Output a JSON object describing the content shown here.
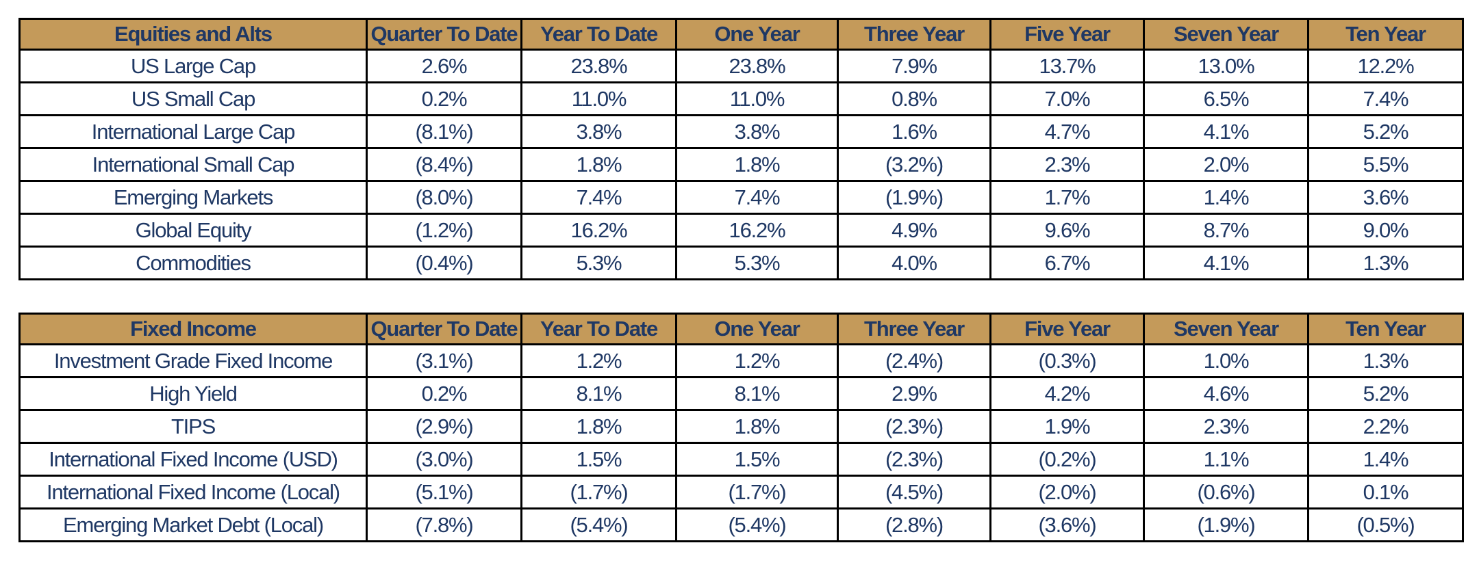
{
  "chart_data": [
    {
      "type": "table",
      "columns": [
        "Equities and Alts",
        "Quarter To Date",
        "Year To Date",
        "One Year",
        "Three Year",
        "Five Year",
        "Seven Year",
        "Ten Year"
      ],
      "rows": [
        [
          "US Large Cap",
          "2.6%",
          "23.8%",
          "23.8%",
          "7.9%",
          "13.7%",
          "13.0%",
          "12.2%"
        ],
        [
          "US Small Cap",
          "0.2%",
          "11.0%",
          "11.0%",
          "0.8%",
          "7.0%",
          "6.5%",
          "7.4%"
        ],
        [
          "International Large Cap",
          "(8.1%)",
          "3.8%",
          "3.8%",
          "1.6%",
          "4.7%",
          "4.1%",
          "5.2%"
        ],
        [
          "International Small Cap",
          "(8.4%)",
          "1.8%",
          "1.8%",
          "(3.2%)",
          "2.3%",
          "2.0%",
          "5.5%"
        ],
        [
          "Emerging Markets",
          "(8.0%)",
          "7.4%",
          "7.4%",
          "(1.9%)",
          "1.7%",
          "1.4%",
          "3.6%"
        ],
        [
          "Global Equity",
          "(1.2%)",
          "16.2%",
          "16.2%",
          "4.9%",
          "9.6%",
          "8.7%",
          "9.0%"
        ],
        [
          "Commodities",
          "(0.4%)",
          "5.3%",
          "5.3%",
          "4.0%",
          "6.7%",
          "4.1%",
          "1.3%"
        ]
      ]
    },
    {
      "type": "table",
      "columns": [
        "Fixed Income",
        "Quarter To Date",
        "Year To Date",
        "One Year",
        "Three Year",
        "Five Year",
        "Seven Year",
        "Ten Year"
      ],
      "rows": [
        [
          "Investment Grade Fixed Income",
          "(3.1%)",
          "1.2%",
          "1.2%",
          "(2.4%)",
          "(0.3%)",
          "1.0%",
          "1.3%"
        ],
        [
          "High Yield",
          "0.2%",
          "8.1%",
          "8.1%",
          "2.9%",
          "4.2%",
          "4.6%",
          "5.2%"
        ],
        [
          "TIPS",
          "(2.9%)",
          "1.8%",
          "1.8%",
          "(2.3%)",
          "1.9%",
          "2.3%",
          "2.2%"
        ],
        [
          "International Fixed Income (USD)",
          "(3.0%)",
          "1.5%",
          "1.5%",
          "(2.3%)",
          "(0.2%)",
          "1.1%",
          "1.4%"
        ],
        [
          "International Fixed Income (Local)",
          "(5.1%)",
          "(1.7%)",
          "(1.7%)",
          "(4.5%)",
          "(2.0%)",
          "(0.6%)",
          "0.1%"
        ],
        [
          "Emerging Market Debt (Local)",
          "(7.8%)",
          "(5.4%)",
          "(5.4%)",
          "(2.8%)",
          "(3.6%)",
          "(1.9%)",
          "(0.5%)"
        ]
      ]
    }
  ],
  "colors": {
    "header_bg": "#c49a5a",
    "text": "#1f3864",
    "border": "#000000"
  }
}
